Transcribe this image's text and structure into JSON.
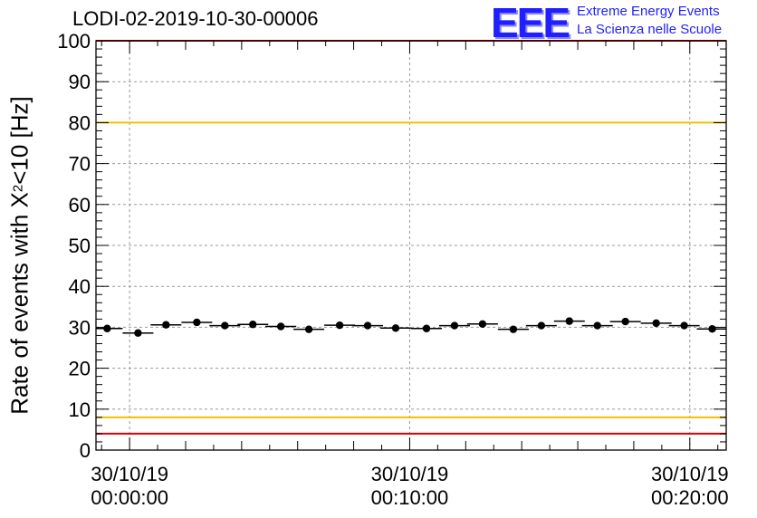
{
  "chart_data": {
    "type": "scatter",
    "title": "LODI-02-2019-10-30-00006",
    "ylabel_prefix": "Rate of events with X",
    "ylabel_sup": "2",
    "ylabel_suffix": "<10 [Hz]",
    "xlabel": "",
    "ylim": [
      0,
      100
    ],
    "yticks": [
      0,
      10,
      20,
      30,
      40,
      50,
      60,
      70,
      80,
      90,
      100
    ],
    "ytick_labels": [
      "0",
      "10",
      "20",
      "30",
      "40",
      "50",
      "60",
      "70",
      "80",
      "90",
      "100"
    ],
    "xlim_minutes": [
      -1.2,
      21.3
    ],
    "xticks_minutes": [
      0,
      10,
      20
    ],
    "xtick_labels": [
      {
        "date": "30/10/19",
        "time": "00:00:00"
      },
      {
        "date": "30/10/19",
        "time": "00:10:00"
      },
      {
        "date": "30/10/19",
        "time": "00:20:00"
      }
    ],
    "bin_width_minutes": 1.1,
    "x_minutes": [
      -0.8,
      0.3,
      1.3,
      2.4,
      3.4,
      4.4,
      5.4,
      6.4,
      7.5,
      8.5,
      9.5,
      10.6,
      11.6,
      12.6,
      13.7,
      14.7,
      15.7,
      16.7,
      17.7,
      18.8,
      19.8,
      20.8
    ],
    "values": [
      29.7,
      28.6,
      30.6,
      31.2,
      30.4,
      30.7,
      30.2,
      29.5,
      30.5,
      30.4,
      29.8,
      29.7,
      30.4,
      30.8,
      29.5,
      30.4,
      31.5,
      30.4,
      31.4,
      31.0,
      30.4,
      29.6
    ],
    "reference_lines": [
      {
        "y": 80,
        "color": "#f0c000"
      },
      {
        "y": 8,
        "color": "#f0c000"
      },
      {
        "y": 4,
        "color": "#e00000"
      },
      {
        "y": 100,
        "color": "#e00000"
      }
    ],
    "grid": true
  },
  "logo": {
    "text": "EEE",
    "line1": "Extreme Energy Events",
    "line2": "La Scienza nelle Scuole",
    "color": "#1f1fff"
  }
}
